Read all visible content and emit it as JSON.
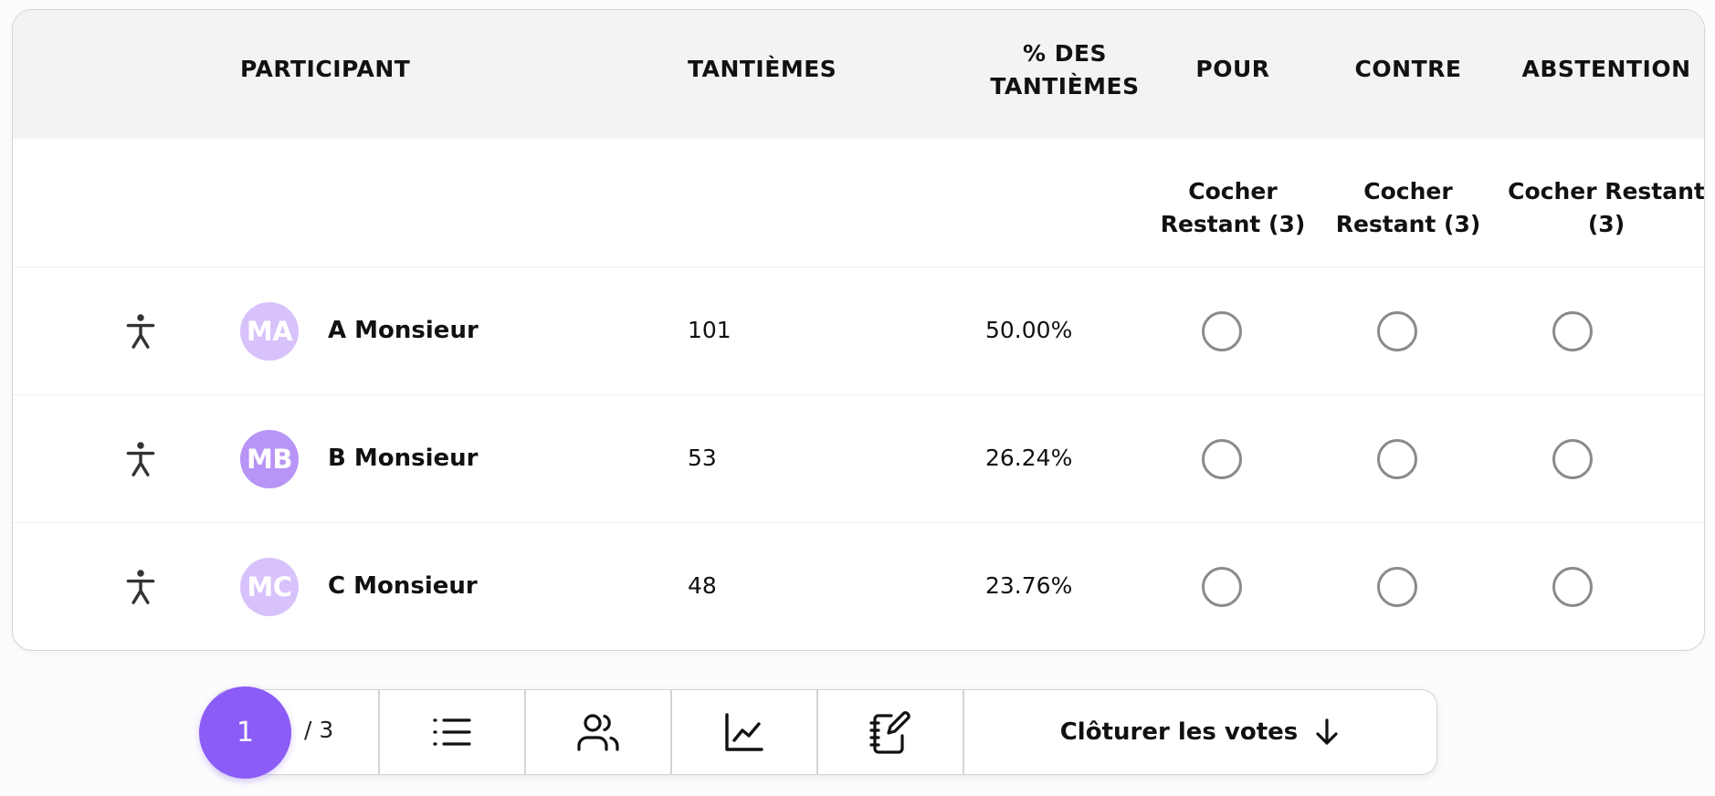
{
  "table": {
    "headers": {
      "participant": "PARTICIPANT",
      "tantiemes": "TANTIÈMES",
      "pct_line1": "% DES",
      "pct_line2": "TANTIÈMES",
      "pour": "POUR",
      "contre": "CONTRE",
      "abstention": "ABSTENTION"
    },
    "cocher": {
      "pour": [
        "Cocher",
        "Restant (3)"
      ],
      "contre": [
        "Cocher",
        "Restant (3)"
      ],
      "abstention": [
        "Cocher Restant",
        "(3)"
      ]
    },
    "rows": [
      {
        "initials": "MA",
        "name": "A Monsieur",
        "tantiemes": "101",
        "pct": "50.00%",
        "avatar_color": "#d7c2fb"
      },
      {
        "initials": "MB",
        "name": "B Monsieur",
        "tantiemes": "53",
        "pct": "26.24%",
        "avatar_color": "#b794f6"
      },
      {
        "initials": "MC",
        "name": "C Monsieur",
        "tantiemes": "48",
        "pct": "23.76%",
        "avatar_color": "#d7c2fb"
      }
    ]
  },
  "toolbar": {
    "current_page": "1",
    "total_pages": "/ 3",
    "close_votes_label": "Clôturer les votes",
    "icons": [
      "list-icon",
      "users-icon",
      "chart-line-icon",
      "notebook-pen-icon",
      "arrow-down-icon"
    ]
  },
  "colors": {
    "accent": "#8b5cf6",
    "header_bg": "#f3f3f3",
    "radio_border": "#8a8a8a"
  }
}
